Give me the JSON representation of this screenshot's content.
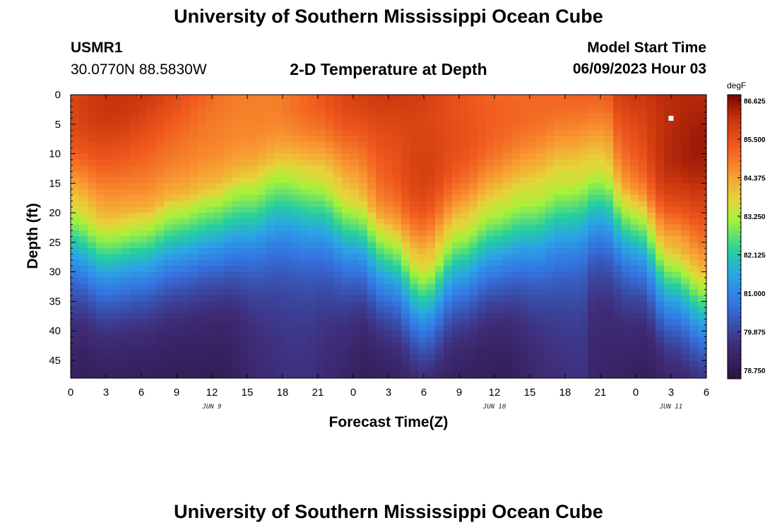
{
  "header": {
    "title": "University of Southern Mississippi Ocean Cube",
    "station_id": "USMR1",
    "coordinates": "30.0770N  88.5830W",
    "subtitle": "2-D Temperature at Depth",
    "model_start_label": "Model Start Time",
    "model_start_value": "06/09/2023 Hour 03"
  },
  "footer": {
    "title": "University of Southern Mississippi Ocean Cube"
  },
  "chart_data": {
    "type": "heatmap",
    "title": "2-D Temperature at Depth",
    "xlabel": "Forecast Time(Z)",
    "ylabel": "Depth (ft)",
    "x_ticks": [
      "0",
      "3",
      "6",
      "9",
      "12",
      "15",
      "18",
      "21",
      "0",
      "3",
      "6",
      "9",
      "12",
      "15",
      "18",
      "21",
      "0",
      "3",
      "6"
    ],
    "x_range_hours": [
      0,
      54
    ],
    "date_labels": [
      {
        "label": "JUN 9",
        "hour": 12
      },
      {
        "label": "JUN 10",
        "hour": 36
      },
      {
        "label": "JUN 11",
        "hour": 51
      }
    ],
    "y_ticks": [
      "0",
      "5",
      "10",
      "15",
      "20",
      "25",
      "30",
      "35",
      "40",
      "45"
    ],
    "y_range_ft": [
      0,
      48
    ],
    "y_inverted": true,
    "colorbar": {
      "unit": "degF",
      "labels": [
        "86.625",
        "85.500",
        "84.375",
        "83.250",
        "82.125",
        "81.000",
        "79.875",
        "78.750"
      ],
      "min": 78.5,
      "max": 86.8
    },
    "thermocline_depth_ft_by_hour": [
      {
        "hour": 0,
        "depth": 24
      },
      {
        "hour": 3,
        "depth": 27
      },
      {
        "hour": 6,
        "depth": 26
      },
      {
        "hour": 9,
        "depth": 24
      },
      {
        "hour": 12,
        "depth": 23
      },
      {
        "hour": 15,
        "depth": 21
      },
      {
        "hour": 18,
        "depth": 18
      },
      {
        "hour": 21,
        "depth": 19
      },
      {
        "hour": 24,
        "depth": 23
      },
      {
        "hour": 27,
        "depth": 28
      },
      {
        "hour": 30,
        "depth": 34
      },
      {
        "hour": 33,
        "depth": 28
      },
      {
        "hour": 36,
        "depth": 25
      },
      {
        "hour": 39,
        "depth": 23
      },
      {
        "hour": 42,
        "depth": 20
      },
      {
        "hour": 45,
        "depth": 18
      },
      {
        "hour": 48,
        "depth": 23
      },
      {
        "hour": 51,
        "depth": 31
      },
      {
        "hour": 54,
        "depth": 35
      }
    ],
    "marker": {
      "hour": 51,
      "depth_ft": 4
    }
  }
}
